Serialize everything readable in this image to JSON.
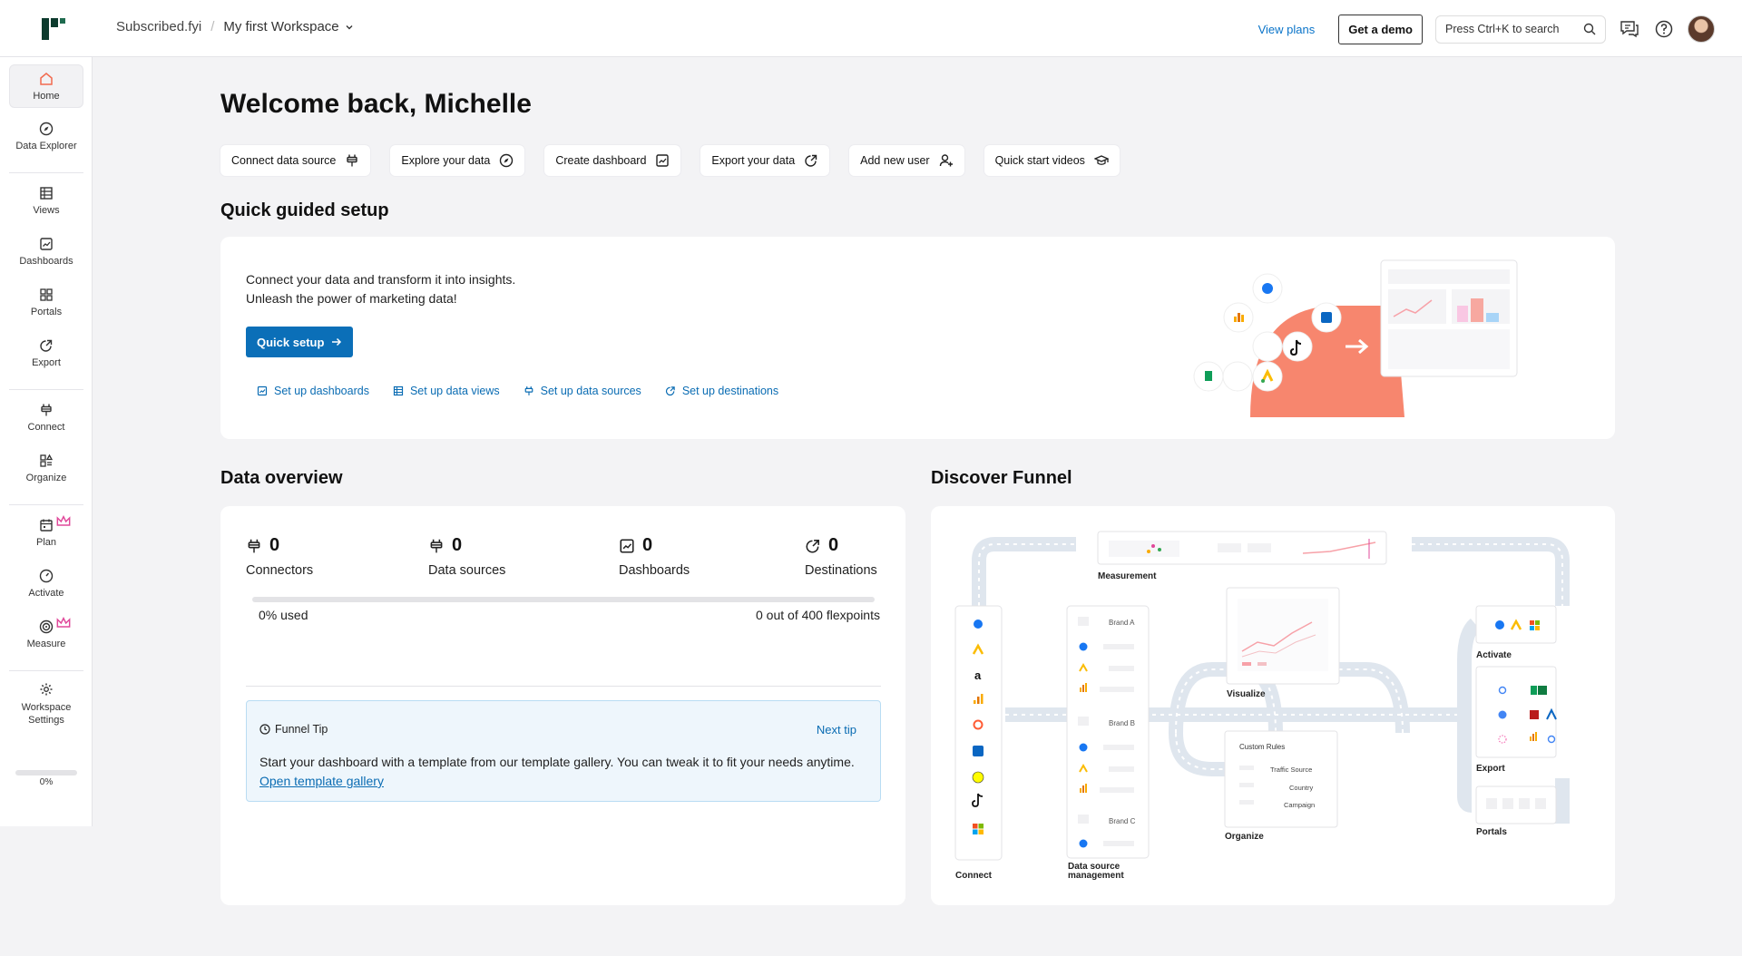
{
  "topbar": {
    "org": "Subscribed.fyi",
    "separator": "/",
    "workspace": "My first Workspace",
    "view_plans": "View plans",
    "get_demo": "Get a demo",
    "search_placeholder": "Press Ctrl+K to search"
  },
  "sidebar": {
    "items": [
      {
        "label": "Home",
        "icon": "home-icon",
        "active": true
      },
      {
        "label": "Data Explorer",
        "icon": "compass-icon"
      },
      {
        "label": "Views",
        "icon": "table-icon"
      },
      {
        "label": "Dashboards",
        "icon": "chart-icon"
      },
      {
        "label": "Portals",
        "icon": "grid-icon"
      },
      {
        "label": "Export",
        "icon": "export-icon"
      },
      {
        "label": "Connect",
        "icon": "plug-icon"
      },
      {
        "label": "Organize",
        "icon": "organize-icon"
      },
      {
        "label": "Plan",
        "icon": "calendar-icon",
        "premium": true
      },
      {
        "label": "Activate",
        "icon": "gauge-icon"
      },
      {
        "label": "Measure",
        "icon": "target-icon",
        "premium": true
      },
      {
        "label": "Workspace Settings",
        "icon": "gear-icon"
      }
    ],
    "progress_label": "0%",
    "progress_value": 0
  },
  "main": {
    "title": "Welcome back, Michelle",
    "quick_actions": [
      {
        "label": "Connect data source",
        "icon": "plug-icon"
      },
      {
        "label": "Explore your data",
        "icon": "compass-icon"
      },
      {
        "label": "Create dashboard",
        "icon": "chart-icon"
      },
      {
        "label": "Export your data",
        "icon": "export-icon"
      },
      {
        "label": "Add new user",
        "icon": "add-user-icon"
      },
      {
        "label": "Quick start videos",
        "icon": "graduation-cap-icon"
      }
    ],
    "setup": {
      "heading": "Quick guided setup",
      "line1": "Connect your data and transform it into insights.",
      "line2": "Unleash the power of marketing data!",
      "button": "Quick setup",
      "links": [
        {
          "label": "Set up dashboards",
          "icon": "chart-icon"
        },
        {
          "label": "Set up data views",
          "icon": "table-icon"
        },
        {
          "label": "Set up data sources",
          "icon": "plug-icon"
        },
        {
          "label": "Set up destinations",
          "icon": "export-icon"
        }
      ]
    },
    "overview": {
      "heading": "Data overview",
      "stats": [
        {
          "value": "0",
          "label": "Connectors",
          "icon": "plug-icon"
        },
        {
          "value": "0",
          "label": "Data sources",
          "icon": "plug-icon"
        },
        {
          "value": "0",
          "label": "Dashboards",
          "icon": "chart-icon"
        },
        {
          "value": "0",
          "label": "Destinations",
          "icon": "export-icon"
        }
      ],
      "usage_label": "0% used",
      "usage_value": 0,
      "flexpoints": "0 out of 400 flexpoints",
      "tip": {
        "title": "Funnel Tip",
        "next": "Next tip",
        "body": "Start your dashboard with a template from our template gallery. You can tweak it to fit your needs anytime.",
        "link": "Open template gallery"
      }
    },
    "funnel": {
      "heading": "Discover Funnel",
      "labels": {
        "measurement": "Measurement",
        "visualize": "Visualize",
        "activate": "Activate",
        "export": "Export",
        "portals": "Portals",
        "organize": "Organize",
        "connect": "Connect",
        "data_source_line1": "Data source",
        "data_source_line2": "management",
        "brand_a": "Brand A",
        "brand_b": "Brand B",
        "brand_c": "Brand C",
        "custom_rules": "Custom Rules",
        "traffic_source": "Traffic Source",
        "country": "Country",
        "campaign": "Campaign"
      }
    }
  },
  "colors": {
    "accent": "#0b6fb8",
    "link": "#0a6cb3",
    "brand_green": "#0d3b2e",
    "coral": "#f7866e",
    "premium": "#e0489a"
  }
}
